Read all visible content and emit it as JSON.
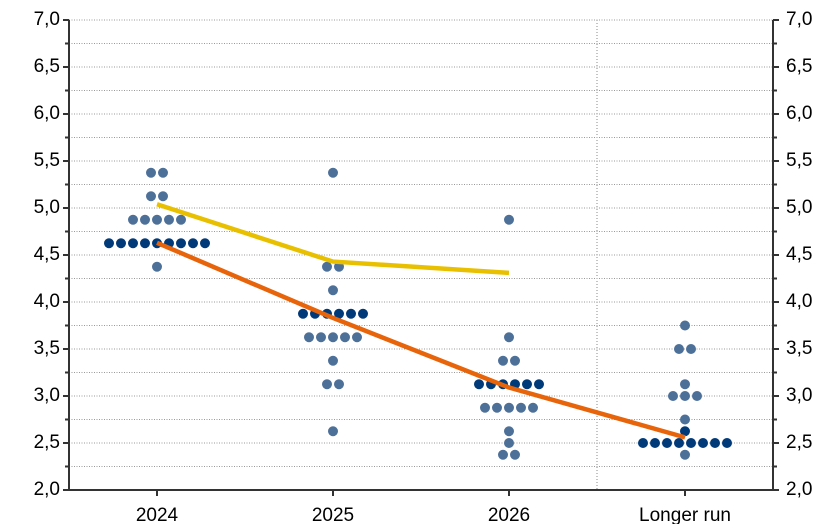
{
  "chart_data": {
    "type": "dot",
    "categories": [
      "2024",
      "2025",
      "2026",
      "Longer run"
    ],
    "ylim": [
      2,
      7
    ],
    "yticks": [
      {
        "value": 2,
        "label": "2,0"
      },
      {
        "value": 2.5,
        "label": "2,5"
      },
      {
        "value": 3,
        "label": "3,0"
      },
      {
        "value": 3.5,
        "label": "3,5"
      },
      {
        "value": 4,
        "label": "4,0"
      },
      {
        "value": 4.5,
        "label": "4,5"
      },
      {
        "value": 5,
        "label": "5,0"
      },
      {
        "value": 5.5,
        "label": "5,5"
      },
      {
        "value": 6,
        "label": "6,0"
      },
      {
        "value": 6.5,
        "label": "6,5"
      },
      {
        "value": 7,
        "label": "7,0"
      }
    ],
    "minor_yticks": [
      2.25,
      2.75,
      3.25,
      3.75,
      4.25,
      4.75,
      5.25,
      5.75,
      6.25,
      6.75
    ],
    "grid": true,
    "dots": [
      {
        "color": "#003a78",
        "values": [
          [
            4.625,
            4.625,
            4.625,
            4.625,
            4.625,
            4.625,
            4.625,
            4.625,
            4.625
          ],
          [
            3.875,
            3.875,
            3.875,
            3.875,
            3.875,
            3.875
          ],
          [
            3.125,
            3.125,
            3.125,
            3.125,
            3.125,
            3.125
          ],
          [
            2.625,
            2.5,
            2.5,
            2.5,
            2.5,
            2.5,
            2.5,
            2.5,
            2.5
          ]
        ]
      },
      {
        "color": "#4d7099",
        "values": [
          [
            5.375,
            5.375,
            5.125,
            5.125,
            4.875,
            4.875,
            4.875,
            4.875,
            4.875,
            4.375
          ],
          [
            5.375,
            4.375,
            4.375,
            4.125,
            3.625,
            3.625,
            3.625,
            3.625,
            3.625,
            3.375,
            3.125,
            3.125,
            2.625
          ],
          [
            4.875,
            3.625,
            3.375,
            3.375,
            2.875,
            2.875,
            2.875,
            2.875,
            2.875,
            2.625,
            2.5,
            2.375,
            2.375
          ],
          [
            3.75,
            3.5,
            3.5,
            3.125,
            3,
            3,
            3,
            2.75,
            2.375
          ]
        ]
      }
    ],
    "series": [
      {
        "color": "#e8c000",
        "values": [
          5.04,
          4.43,
          4.31,
          null
        ]
      },
      {
        "color": "#e8640a",
        "values": [
          4.63,
          3.83,
          3.09,
          2.56
        ]
      }
    ]
  }
}
